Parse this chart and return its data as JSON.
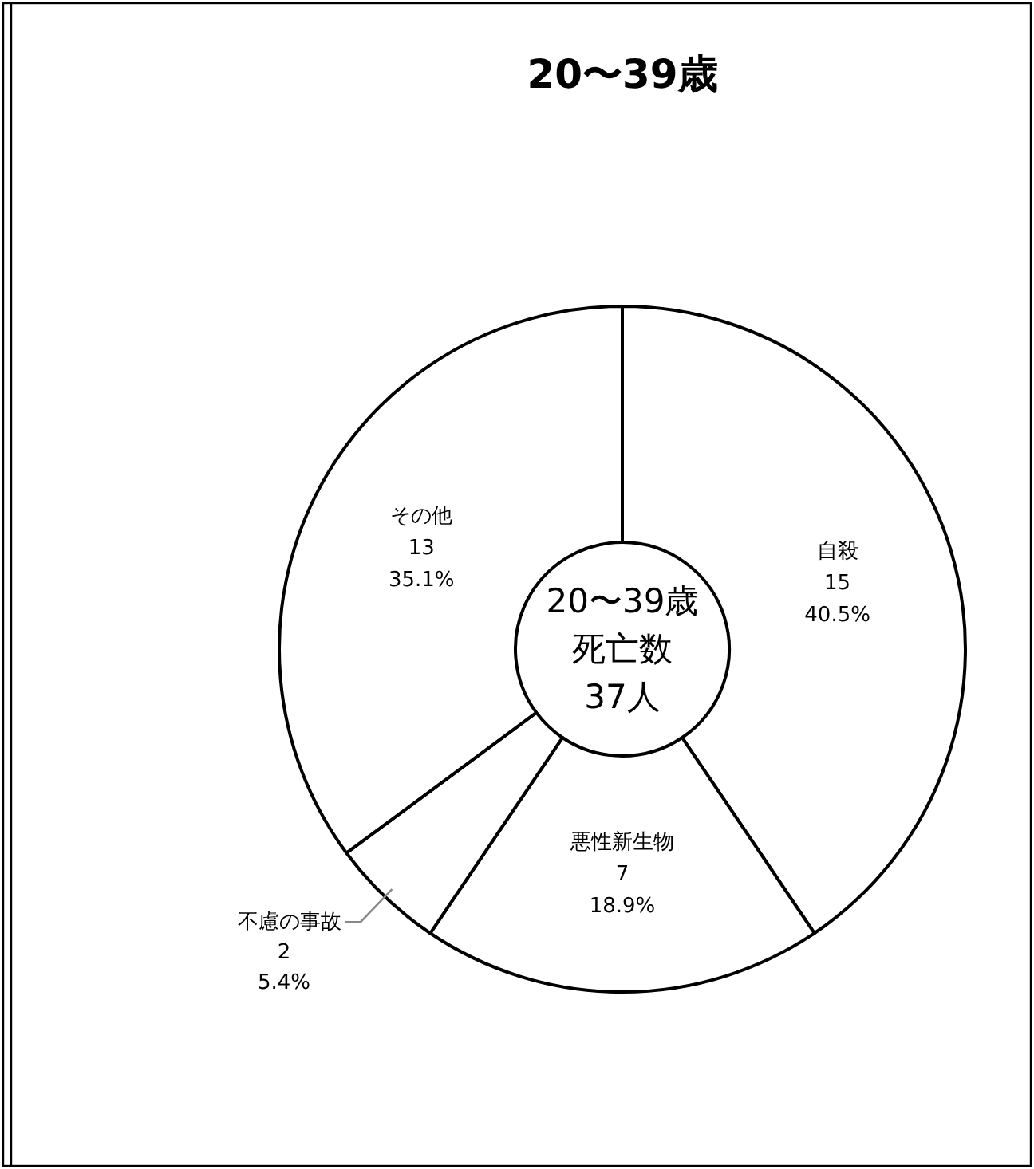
{
  "chart_data": {
    "type": "donut",
    "title": "20〜39歳",
    "categories": [
      "自殺",
      "悪性新生物",
      "不慮の事故",
      "その他"
    ],
    "values": [
      40.5,
      18.9,
      5.4,
      35.1
    ],
    "colors": [
      "#ffffff",
      "#ffffff",
      "#ffffff",
      "#ffffff"
    ],
    "value_labels": [
      "15\n40.5%",
      "7\n18.9%",
      "2\n5.4%",
      "13\n35.1%"
    ],
    "annotations": [
      "20〜39歳",
      "死亡数",
      "37人"
    ]
  }
}
